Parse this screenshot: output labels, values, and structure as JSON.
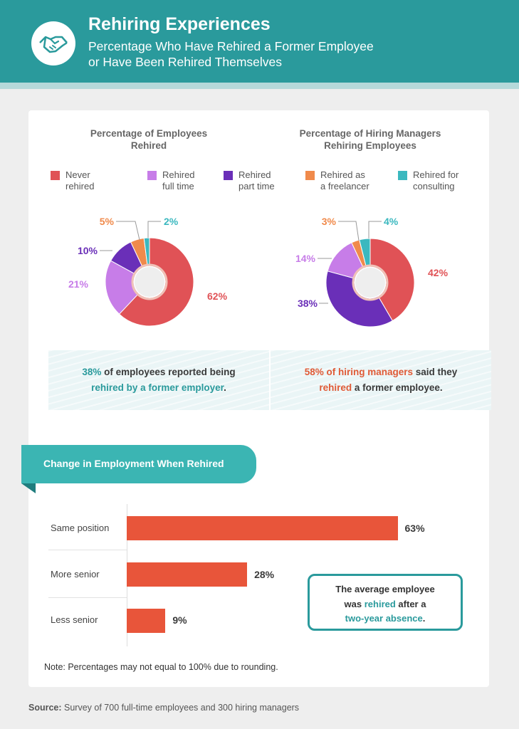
{
  "header": {
    "title": "Rehiring Experiences",
    "subtitle_line1": "Percentage Who Have Rehired a Former Employee",
    "subtitle_line2": "or Have Been Rehired Themselves",
    "logo_icon": "handshake-icon"
  },
  "colors": {
    "header_bg": "#2a9a9c",
    "never_rehired": "#e05256",
    "rehired_full_time": "#c77de8",
    "rehired_part_time": "#6a2fb8",
    "rehired_freelancer": "#f08a4b",
    "rehired_consulting": "#3bb8bf",
    "bar": "#e8553a"
  },
  "legend": [
    {
      "line1": "Never",
      "line2": "rehired",
      "color": "#e05256"
    },
    {
      "line1": "Rehired",
      "line2": "full time",
      "color": "#c77de8"
    },
    {
      "line1": "Rehired",
      "line2": "part time",
      "color": "#6a2fb8"
    },
    {
      "line1": "Rehired as",
      "line2": "a freelancer",
      "color": "#f08a4b"
    },
    {
      "line1": "Rehired for",
      "line2": "consulting",
      "color": "#3bb8bf"
    }
  ],
  "chart_data": [
    {
      "type": "pie",
      "style": "donut",
      "title_line1": "Percentage of Employees",
      "title_line2": "Rehired",
      "slices": [
        {
          "label": "Never rehired",
          "value": 62,
          "text": "62%"
        },
        {
          "label": "Rehired full time",
          "value": 21,
          "text": "21%"
        },
        {
          "label": "Rehired part time",
          "value": 10,
          "text": "10%"
        },
        {
          "label": "Rehired as a freelancer",
          "value": 5,
          "text": "5%"
        },
        {
          "label": "Rehired for consulting",
          "value": 2,
          "text": "2%"
        }
      ],
      "callout": {
        "part1": "38%",
        "part2": " of employees reported being ",
        "part3": "rehired by a former employer",
        "part4": "."
      }
    },
    {
      "type": "pie",
      "style": "donut",
      "title_line1": "Percentage of Hiring Managers",
      "title_line2": "Rehiring Employees",
      "slices": [
        {
          "label": "Never rehired",
          "value": 42,
          "text": "42%"
        },
        {
          "label": "Rehired part time",
          "value": 38,
          "text": "38%"
        },
        {
          "label": "Rehired full time",
          "value": 14,
          "text": "14%"
        },
        {
          "label": "Rehired as a freelancer",
          "value": 3,
          "text": "3%"
        },
        {
          "label": "Rehired for consulting",
          "value": 4,
          "text": "4%"
        }
      ],
      "callout": {
        "part1": "58% of hiring managers",
        "part2": " said they ",
        "part3": "rehired",
        "part4": " a former employee."
      }
    },
    {
      "type": "bar",
      "orientation": "horizontal",
      "title": "Change in Employment When Rehired",
      "categories": [
        "Same position",
        "More senior",
        "Less senior"
      ],
      "values": [
        63,
        28,
        9
      ],
      "value_labels": [
        "63%",
        "28%",
        "9%"
      ],
      "xlim": [
        0,
        100
      ]
    }
  ],
  "fact_box": {
    "line1": "The average employee",
    "line2a": "was ",
    "line2b": "rehired",
    "line2c": " after a",
    "line3a": "two-year absence",
    "line3b": "."
  },
  "note": "Note: Percentages may not equal to 100% due to rounding.",
  "source": {
    "label": "Source:",
    "text": " Survey of 700 full-time employees and 300 hiring managers"
  }
}
